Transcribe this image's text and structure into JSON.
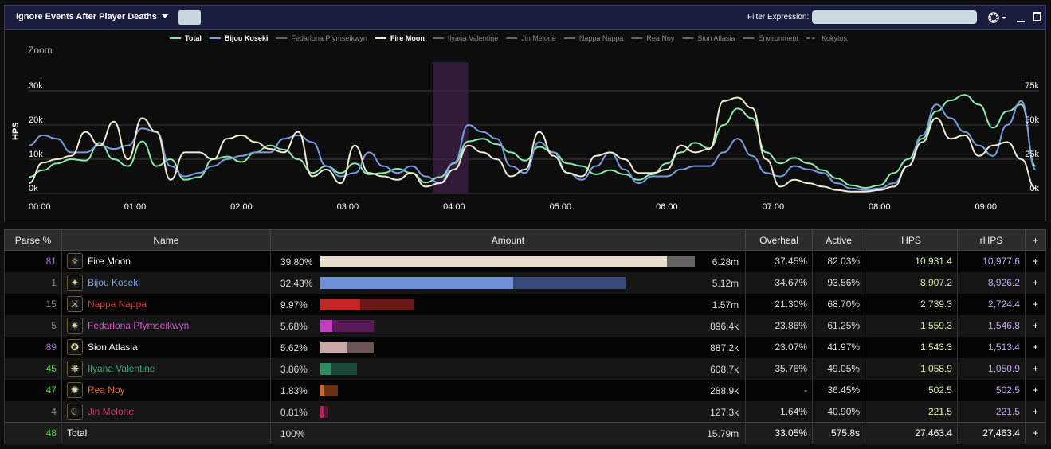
{
  "topbar": {
    "ignore_label": "Ignore Events After Player Deaths",
    "filter_label": "Filter Expression:",
    "filter_value": "",
    "gear_icon": "gear-icon",
    "minimize_icon": "minimize-icon",
    "maximize_icon": "maximize-icon"
  },
  "chart": {
    "ylabel": "HPS",
    "zoom_label": "Zoom",
    "left_ticks": [
      "0k",
      "10k",
      "20k",
      "30k"
    ],
    "right_ticks": [
      "0k",
      "25k",
      "50k",
      "75k"
    ],
    "x_ticks": [
      "00:00",
      "01:00",
      "02:00",
      "03:00",
      "04:00",
      "05:00",
      "06:00",
      "07:00",
      "08:00",
      "09:00"
    ],
    "legend": [
      {
        "name": "Total",
        "color": "#8be8a8",
        "active": true,
        "dash": false
      },
      {
        "name": "Bijou Koseki",
        "color": "#7a9be0",
        "active": true,
        "dash": false
      },
      {
        "name": "Fedarlona Pfymseikwyn",
        "color": "#666666",
        "active": false,
        "dash": false
      },
      {
        "name": "Fire Moon",
        "color": "#f0ead0",
        "active": true,
        "dash": false
      },
      {
        "name": "Ilyana Valentine",
        "color": "#666666",
        "active": false,
        "dash": false
      },
      {
        "name": "Jin Melone",
        "color": "#666666",
        "active": false,
        "dash": false
      },
      {
        "name": "Nappa Nappa",
        "color": "#666666",
        "active": false,
        "dash": false
      },
      {
        "name": "Rea Noy",
        "color": "#666666",
        "active": false,
        "dash": false
      },
      {
        "name": "Sion Atlasia",
        "color": "#666666",
        "active": false,
        "dash": false
      },
      {
        "name": "Environment",
        "color": "#666666",
        "active": false,
        "dash": false
      },
      {
        "name": "Kokytos",
        "color": "#666666",
        "active": false,
        "dash": true
      }
    ]
  },
  "chart_data": {
    "type": "line",
    "x_unit": "seconds",
    "xlim": [
      0,
      570
    ],
    "ylim": [
      0,
      30000
    ],
    "ylabel": "HPS",
    "y2lim": [
      0,
      75000
    ],
    "highlight_range": [
      228,
      248
    ],
    "series": [
      {
        "name": "Total",
        "axis": "right",
        "color": "#8be8a8",
        "x": [
          0,
          8,
          16,
          24,
          32,
          40,
          48,
          56,
          64,
          72,
          80,
          88,
          96,
          104,
          112,
          120,
          128,
          136,
          144,
          152,
          160,
          168,
          176,
          184,
          192,
          200,
          208,
          216,
          224,
          232,
          240,
          248,
          256,
          264,
          272,
          280,
          288,
          296,
          304,
          312,
          320,
          328,
          336,
          344,
          352,
          360,
          368,
          376,
          384,
          392,
          400,
          408,
          416,
          424,
          432,
          440,
          448,
          456,
          464,
          472,
          480,
          488,
          496,
          504,
          512,
          520,
          528,
          536,
          544,
          552,
          560,
          568
        ],
        "values": [
          12000,
          17000,
          22000,
          25000,
          24000,
          37000,
          25000,
          20000,
          38000,
          20000,
          25000,
          10000,
          12000,
          25000,
          27000,
          23000,
          30000,
          35000,
          32000,
          25000,
          15000,
          20000,
          15000,
          22000,
          14000,
          15000,
          18000,
          15000,
          8000,
          12000,
          22000,
          38000,
          40000,
          36000,
          30000,
          24000,
          34000,
          30000,
          22000,
          20000,
          14000,
          17000,
          14000,
          10000,
          14000,
          22000,
          30000,
          37000,
          33000,
          50000,
          62000,
          55000,
          30000,
          22000,
          26000,
          22000,
          17000,
          11000,
          6000,
          4000,
          6000,
          15000,
          25000,
          40000,
          60000,
          68000,
          72000,
          65000,
          48000,
          60000,
          65000,
          20000
        ]
      },
      {
        "name": "Bijou Koseki",
        "axis": "left",
        "color": "#7a9be0",
        "x": [
          0,
          8,
          16,
          24,
          32,
          40,
          48,
          56,
          64,
          72,
          80,
          88,
          96,
          104,
          112,
          120,
          128,
          136,
          144,
          152,
          160,
          168,
          176,
          184,
          192,
          200,
          208,
          216,
          224,
          232,
          240,
          248,
          256,
          264,
          272,
          280,
          288,
          296,
          304,
          312,
          320,
          328,
          336,
          344,
          352,
          360,
          368,
          376,
          384,
          392,
          400,
          408,
          416,
          424,
          432,
          440,
          448,
          456,
          464,
          472,
          480,
          488,
          496,
          504,
          512,
          520,
          528,
          536,
          544,
          552,
          560,
          568
        ],
        "values": [
          14000,
          17000,
          16000,
          12000,
          12000,
          14000,
          13000,
          14000,
          19000,
          18000,
          8000,
          5000,
          6000,
          8000,
          10000,
          11000,
          12000,
          12000,
          16000,
          17000,
          15000,
          8000,
          5000,
          6000,
          12000,
          8000,
          6000,
          8000,
          5000,
          3000,
          9000,
          20000,
          18000,
          16000,
          8000,
          6000,
          15000,
          12000,
          6000,
          4000,
          8000,
          12000,
          7000,
          3000,
          5000,
          5000,
          7000,
          8000,
          8000,
          12000,
          16000,
          11000,
          6000,
          5000,
          8000,
          7000,
          6000,
          3000,
          1500,
          1000,
          1500,
          3000,
          8000,
          17000,
          26000,
          22000,
          18000,
          14000,
          11000,
          20000,
          27000,
          7000
        ]
      },
      {
        "name": "Fire Moon",
        "axis": "left",
        "color": "#f0ead0",
        "x": [
          0,
          8,
          16,
          24,
          32,
          40,
          48,
          56,
          64,
          72,
          80,
          88,
          96,
          104,
          112,
          120,
          128,
          136,
          144,
          152,
          160,
          168,
          176,
          184,
          192,
          200,
          208,
          216,
          224,
          232,
          240,
          248,
          256,
          264,
          272,
          280,
          288,
          296,
          304,
          312,
          320,
          328,
          336,
          344,
          352,
          360,
          368,
          376,
          384,
          392,
          400,
          408,
          416,
          424,
          432,
          440,
          448,
          456,
          464,
          472,
          480,
          488,
          496,
          504,
          512,
          520,
          528,
          536,
          544,
          552,
          560,
          568
        ],
        "values": [
          3000,
          9000,
          10000,
          11000,
          18000,
          14000,
          21000,
          10000,
          22000,
          18000,
          4000,
          12000,
          12000,
          10000,
          16000,
          17000,
          15000,
          13000,
          12000,
          18000,
          5000,
          7000,
          3000,
          14000,
          6000,
          5000,
          4000,
          6000,
          2000,
          3000,
          7000,
          14000,
          12000,
          10000,
          5000,
          7000,
          18000,
          11000,
          6000,
          5000,
          11000,
          12000,
          10000,
          6000,
          6000,
          7000,
          14000,
          12000,
          13000,
          27000,
          28000,
          25000,
          10000,
          2000,
          4000,
          3000,
          2000,
          1000,
          500,
          500,
          1000,
          2000,
          8000,
          15000,
          22000,
          16000,
          17000,
          11000,
          14000,
          15000,
          10000,
          1500
        ]
      }
    ]
  },
  "table": {
    "headers": [
      "Parse %",
      "Name",
      "Amount",
      "Overheal",
      "Active",
      "HPS",
      "rHPS",
      "+"
    ],
    "rows": [
      {
        "parse": "81",
        "parse_color": "#a36cd8",
        "name": "Fire Moon",
        "name_color": "#f2f2f2",
        "icon": "astrologian-icon",
        "glyph": "✧",
        "pct": "39.80%",
        "pct_value": 39.8,
        "amount": "6.28m",
        "fg": "#e6dccb",
        "bg": "#666460",
        "fg_w": 435,
        "bg_w": 470,
        "overheal": "37.45%",
        "active": "82.03%",
        "hps": "10,931.4",
        "rhps": "10,977.6"
      },
      {
        "parse": "1",
        "parse_color": "#888888",
        "name": "Bijou Koseki",
        "name_color": "#7fa4e8",
        "icon": "scholar-icon",
        "glyph": "✦",
        "pct": "32.43%",
        "pct_value": 32.43,
        "amount": "5.12m",
        "fg": "#6f8fd6",
        "bg": "#3a4a78",
        "fg_w": 242,
        "bg_w": 383,
        "overheal": "34.67%",
        "active": "93.56%",
        "hps": "8,907.2",
        "rhps": "8,926.2"
      },
      {
        "parse": "15",
        "parse_color": "#888888",
        "name": "Nappa Nappa",
        "name_color": "#d93a3a",
        "icon": "warrior-icon",
        "glyph": "⚔",
        "pct": "9.97%",
        "pct_value": 9.97,
        "amount": "1.57m",
        "fg": "#c02828",
        "bg": "#6a1818",
        "fg_w": 50,
        "bg_w": 118,
        "overheal": "21.30%",
        "active": "68.70%",
        "hps": "2,739.3",
        "rhps": "2,724.4"
      },
      {
        "parse": "5",
        "parse_color": "#888888",
        "name": "Fedarlona Pfymseikwyn",
        "name_color": "#d455d4",
        "icon": "summoner-icon",
        "glyph": "✷",
        "pct": "5.68%",
        "pct_value": 5.68,
        "amount": "896.4k",
        "fg": "#c23ec2",
        "bg": "#5a1a5a",
        "fg_w": 15,
        "bg_w": 67,
        "overheal": "23.86%",
        "active": "61.25%",
        "hps": "1,559.3",
        "rhps": "1,546.8"
      },
      {
        "parse": "89",
        "parse_color": "#a36cd8",
        "name": "Sion Atlasia",
        "name_color": "#f2f2f2",
        "icon": "gunbreaker-icon",
        "glyph": "✪",
        "pct": "5.62%",
        "pct_value": 5.62,
        "amount": "887.2k",
        "fg": "#c9a8a8",
        "bg": "#6a5656",
        "fg_w": 34,
        "bg_w": 67,
        "overheal": "23.07%",
        "active": "41.97%",
        "hps": "1,543.3",
        "rhps": "1,513.4"
      },
      {
        "parse": "45",
        "parse_color": "#3fd43f",
        "name": "Ilyana Valentine",
        "name_color": "#3fa67a",
        "icon": "dancer-icon",
        "glyph": "❋",
        "pct": "3.86%",
        "pct_value": 3.86,
        "amount": "608.7k",
        "fg": "#2f8a62",
        "bg": "#1a4a36",
        "fg_w": 14,
        "bg_w": 46,
        "overheal": "35.76%",
        "active": "49.05%",
        "hps": "1,058.9",
        "rhps": "1,050.9"
      },
      {
        "parse": "47",
        "parse_color": "#3fd43f",
        "name": "Rea Noy",
        "name_color": "#e0742a",
        "icon": "monk-icon",
        "glyph": "✺",
        "pct": "1.83%",
        "pct_value": 1.83,
        "amount": "288.9k",
        "fg": "#d4661e",
        "bg": "#6a3212",
        "fg_w": 4,
        "bg_w": 22,
        "overheal": "-",
        "active": "36.45%",
        "hps": "502.5",
        "rhps": "502.5"
      },
      {
        "parse": "4",
        "parse_color": "#888888",
        "name": "Jin Melone",
        "name_color": "#d0306a",
        "icon": "reaper-icon",
        "glyph": "☾",
        "pct": "0.81%",
        "pct_value": 0.81,
        "amount": "127.3k",
        "fg": "#b8205a",
        "bg": "#5a1030",
        "fg_w": 4,
        "bg_w": 10,
        "overheal": "1.64%",
        "active": "40.90%",
        "hps": "221.5",
        "rhps": "221.5"
      }
    ],
    "total": {
      "parse": "48",
      "parse_color": "#3fd43f",
      "name": "Total",
      "pct": "100%",
      "amount": "15.79m",
      "overheal": "33.05%",
      "active": "575.8s",
      "hps": "27,463.4",
      "rhps": "27,463.4"
    },
    "plus": "+"
  }
}
